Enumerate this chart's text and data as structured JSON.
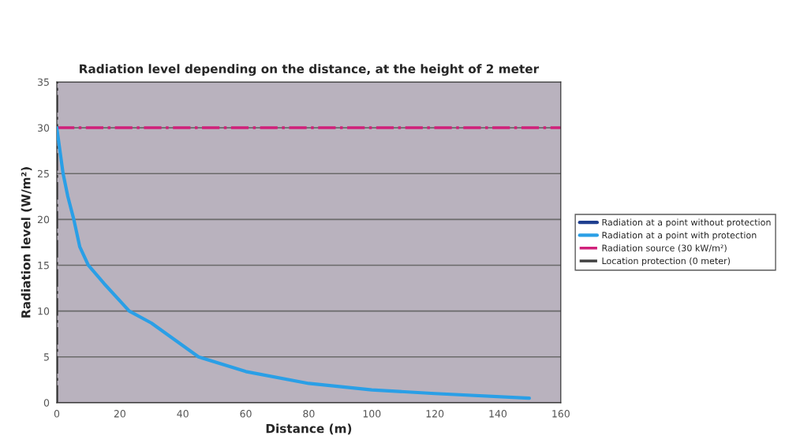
{
  "chart_data": {
    "type": "line",
    "title": "Radiation level depending on the distance, at the height of 2 meter",
    "xlabel": "Distance (m)",
    "ylabel": "Radiation level (W/m²)",
    "series": [
      {
        "name": "Radiation at a point without protection",
        "color": "#1f3f8f"
      },
      {
        "name": "Radiation at a point with protection",
        "color": "#2a9fe6",
        "x": [
          0,
          1,
          2,
          3.5,
          5.4,
          7.3,
          10,
          15,
          23,
          30,
          45,
          60,
          80,
          100,
          120,
          150
        ],
        "values": [
          30,
          27.5,
          25,
          22.5,
          20,
          17,
          15,
          13,
          10,
          8.7,
          5,
          3.4,
          2.1,
          1.4,
          1.0,
          0.5
        ]
      }
    ],
    "ref_lines": [
      {
        "axis": "y",
        "value": 30,
        "label": "Radiation source (30 kW/m²)",
        "color": "#d0207a",
        "line_style": "dashdot"
      },
      {
        "axis": "x",
        "value": 0,
        "label": "Location protection (0 meter)",
        "color": "#404040",
        "line_style": "dashdot"
      }
    ],
    "xlim": [
      0,
      160
    ],
    "xticks": [
      0,
      20,
      40,
      60,
      80,
      100,
      120,
      140,
      160
    ],
    "ylim": [
      0,
      35
    ],
    "yticks": [
      0,
      5,
      10,
      15,
      20,
      25,
      30,
      35
    ],
    "grid": "y",
    "legend": "right"
  }
}
